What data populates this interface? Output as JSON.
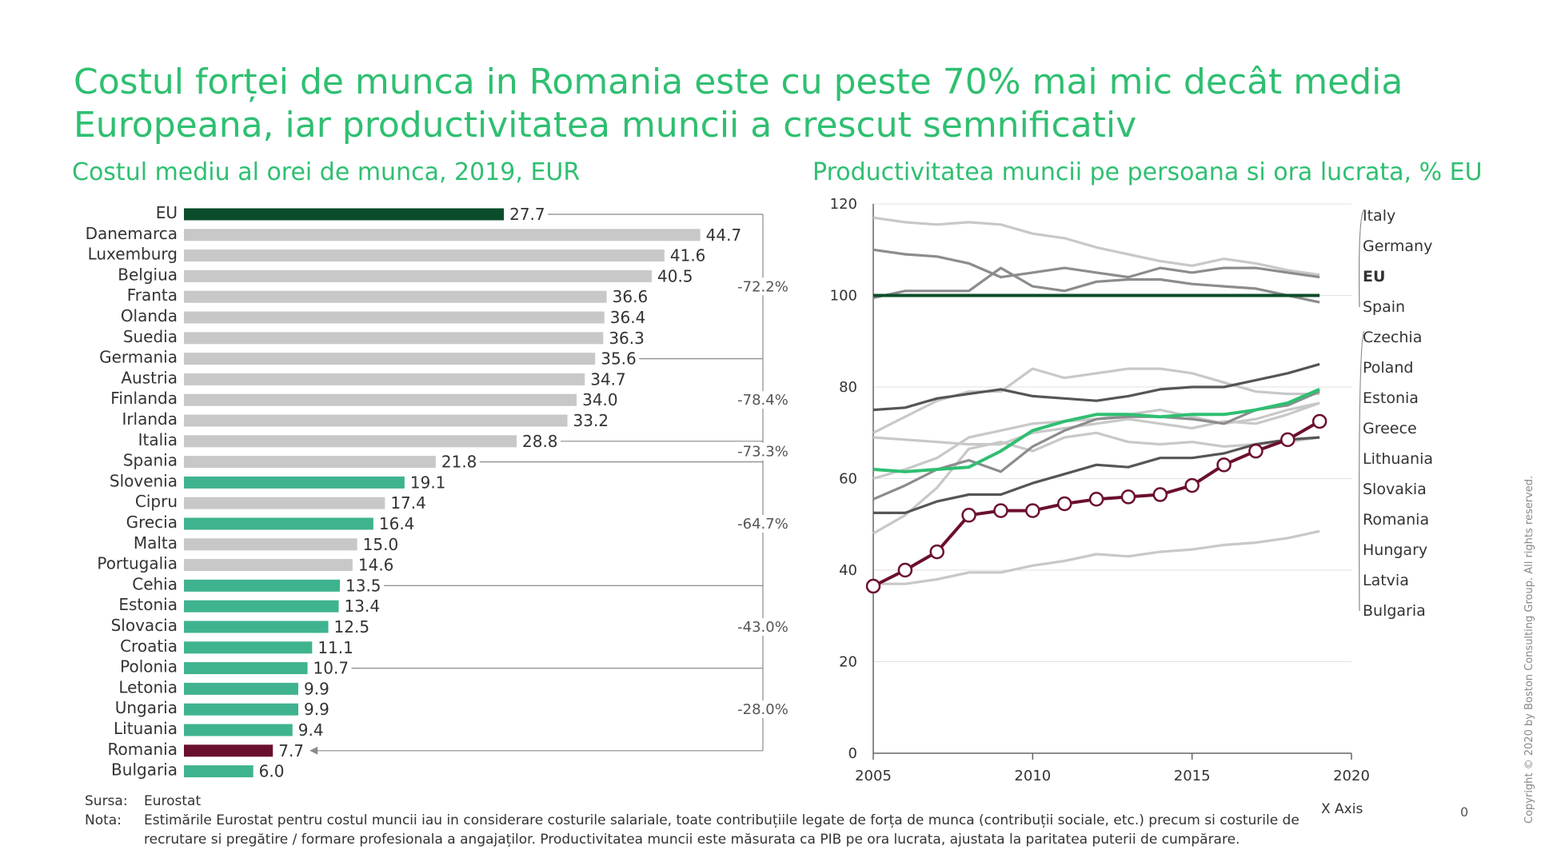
{
  "title": {
    "line1": "Costul forței de munca in Romania este cu peste 70% mai mic decât media",
    "line2": "Europeana, iar productivitatea muncii a crescut semnificativ"
  },
  "colors": {
    "eu": "#0b4d2a",
    "romania": "#6b0f2e",
    "highlight": "#3fb38f",
    "grey": "#c8c8c8",
    "dark_grey": "#555555",
    "mid_grey": "#8c8c8c",
    "light_grey": "#c8c8c8",
    "bright_green": "#2fbf71",
    "title_green": "#2fbf71"
  },
  "chart_data": [
    {
      "type": "bar",
      "orientation": "horizontal",
      "title": "Costul mediu al orei de munca, 2019, EUR",
      "categories": [
        "EU",
        "Danemarca",
        "Luxemburg",
        "Belgiua",
        "Franta",
        "Olanda",
        "Suedia",
        "Germania",
        "Austria",
        "Finlanda",
        "Irlanda",
        "Italia",
        "Spania",
        "Slovenia",
        "Cipru",
        "Grecia",
        "Malta",
        "Portugalia",
        "Cehia",
        "Estonia",
        "Slovacia",
        "Croatia",
        "Polonia",
        "Letonia",
        "Ungaria",
        "Lituania",
        "Romania",
        "Bulgaria"
      ],
      "values": [
        27.7,
        44.7,
        41.6,
        40.5,
        36.6,
        36.4,
        36.3,
        35.6,
        34.7,
        34.0,
        33.2,
        28.8,
        21.8,
        19.1,
        17.4,
        16.4,
        15.0,
        14.6,
        13.5,
        13.4,
        12.5,
        11.1,
        10.7,
        9.9,
        9.9,
        9.4,
        7.7,
        6.0
      ],
      "value_labels": [
        "27.7",
        "44.7",
        "41.6",
        "40.5",
        "36.6",
        "36.4",
        "36.3",
        "35.6",
        "34.7",
        "34.0",
        "33.2",
        "28.8",
        "21.8",
        "19.1",
        "17.4",
        "16.4",
        "15.0",
        "14.6",
        "13.5",
        "13.4",
        "12.5",
        "11.1",
        "10.7",
        "9.9",
        "9.9",
        "9.4",
        "7.7",
        "6.0"
      ],
      "bar_colors": [
        "eu",
        "grey",
        "grey",
        "grey",
        "grey",
        "grey",
        "grey",
        "grey",
        "grey",
        "grey",
        "grey",
        "grey",
        "grey",
        "highlight",
        "grey",
        "highlight",
        "grey",
        "grey",
        "highlight",
        "highlight",
        "highlight",
        "highlight",
        "highlight",
        "highlight",
        "highlight",
        "highlight",
        "romania",
        "highlight"
      ],
      "xlim": [
        0,
        45
      ],
      "brackets": [
        {
          "label": "-72.2%",
          "from": 0,
          "to": 7
        },
        {
          "label": "-78.4%",
          "from": 7,
          "to": 11
        },
        {
          "label": "-73.3%",
          "from": 11,
          "to": 12
        },
        {
          "label": "-64.7%",
          "from": 12,
          "to": 18
        },
        {
          "label": "-43.0%",
          "from": 18,
          "to": 22
        },
        {
          "label": "-28.0%",
          "from": 22,
          "to": 26
        }
      ]
    },
    {
      "type": "line",
      "title": "Productivitatea muncii pe persoana si ora lucrata, % EU",
      "xlabel": "X Axis",
      "xlim": [
        2005,
        2020
      ],
      "ylim": [
        0,
        120
      ],
      "xticks": [
        2005,
        2010,
        2015,
        2020
      ],
      "yticks": [
        0,
        20,
        40,
        60,
        80,
        100,
        120
      ],
      "x": [
        2005,
        2006,
        2007,
        2008,
        2009,
        2010,
        2011,
        2012,
        2013,
        2014,
        2015,
        2016,
        2017,
        2018,
        2019
      ],
      "series": [
        {
          "name": "Italy",
          "color": "light_grey",
          "values": [
            117,
            116,
            115.5,
            116,
            115.5,
            113.5,
            112.5,
            110.5,
            109,
            107.5,
            106.5,
            108,
            107,
            105.5,
            104.5
          ]
        },
        {
          "name": "Germany",
          "color": "mid_grey",
          "values": [
            110,
            109,
            108.5,
            107,
            104,
            105,
            106,
            105,
            104,
            106,
            105,
            106,
            106,
            105,
            104
          ]
        },
        {
          "name": "EU",
          "color": "eu",
          "values": [
            100,
            100,
            100,
            100,
            100,
            100,
            100,
            100,
            100,
            100,
            100,
            100,
            100,
            100,
            100
          ]
        },
        {
          "name": "Spain",
          "color": "mid_grey",
          "values": [
            99.5,
            101,
            101,
            101,
            106,
            102,
            101,
            103,
            103.5,
            103.5,
            102.5,
            102,
            101.5,
            100,
            98.5
          ]
        },
        {
          "name": "Czechia",
          "color": "dark_grey",
          "values": [
            75,
            75.5,
            77.5,
            78.5,
            79.5,
            78,
            77.5,
            77,
            78,
            79.5,
            80,
            80,
            81.5,
            83,
            85
          ]
        },
        {
          "name": "Poland",
          "color": "light_grey",
          "values": [
            70,
            73.5,
            77,
            79,
            79,
            84,
            82,
            83,
            84,
            84,
            83,
            81,
            79,
            78.5,
            78.5
          ]
        },
        {
          "name": "Estonia",
          "color": "light_grey",
          "values": [
            60,
            62,
            64.5,
            69,
            70.5,
            72,
            72.5,
            73,
            74,
            75,
            73.5,
            72,
            73,
            75,
            76.5
          ]
        },
        {
          "name": "Greece",
          "color": "light_grey",
          "values": [
            69,
            68.5,
            68,
            67.5,
            67.5,
            70,
            71,
            72,
            73,
            72,
            71,
            72.5,
            72,
            74,
            76.5
          ]
        },
        {
          "name": "Lithuania",
          "color": "mid_grey",
          "values": [
            55.5,
            58.5,
            62,
            64,
            61.5,
            67,
            70.5,
            73,
            73.5,
            73.5,
            73,
            72,
            75,
            76,
            79
          ]
        },
        {
          "name": "Slovakia",
          "color": "bright_green",
          "values": [
            62,
            61.5,
            62,
            62.5,
            66,
            70.5,
            72.5,
            74,
            74,
            73.5,
            74,
            74,
            75,
            76.5,
            79.5
          ]
        },
        {
          "name": "Romania",
          "color": "romania",
          "values": [
            36.5,
            40,
            44,
            52,
            53,
            53,
            54.5,
            55.5,
            56,
            56.5,
            58.5,
            63,
            66,
            68.5,
            72.5
          ]
        },
        {
          "name": "Hungary",
          "color": "dark_grey",
          "values": [
            52.5,
            52.5,
            55,
            56.5,
            56.5,
            59,
            61,
            63,
            62.5,
            64.5,
            64.5,
            65.5,
            67.5,
            68.5,
            69
          ]
        },
        {
          "name": "Latvia",
          "color": "light_grey",
          "values": [
            48,
            52,
            58,
            66.5,
            68,
            66,
            69,
            70,
            68,
            67.5,
            68,
            67,
            67.5,
            68,
            69
          ]
        },
        {
          "name": "Bulgaria",
          "color": "light_grey",
          "values": [
            37,
            37,
            38,
            39.5,
            39.5,
            41,
            42,
            43.5,
            43,
            44,
            44.5,
            45.5,
            46,
            47,
            48.5
          ]
        }
      ]
    }
  ],
  "footer": {
    "source_key": "Sursa:",
    "source_value": "Eurostat",
    "note_key": "Nota:",
    "note_line1": "Estimările Eurostat pentru costul muncii iau in considerare costurile salariale, toate contribuțiile legate de forța de munca  (contribuții sociale, etc.) precum si costurile de",
    "note_line2": "recrutare si pregătire / formare profesionala a angajaților. Productivitatea muncii este măsurata ca PIB pe ora lucrata, ajustata la paritatea puterii de cumpărare."
  },
  "page_number": "0",
  "copyright": "Copyright © 2020 by Boston Consulting Group. All rights reserved."
}
